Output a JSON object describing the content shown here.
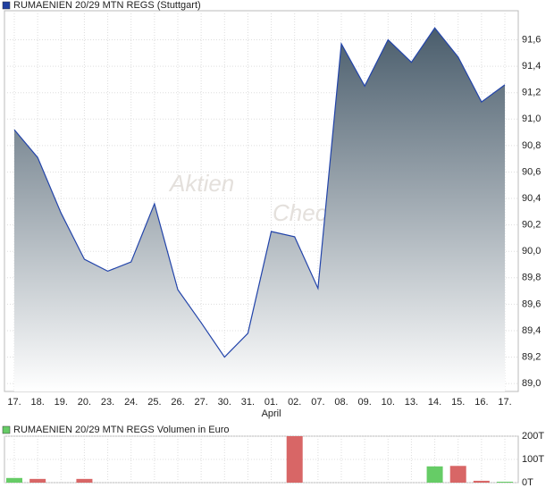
{
  "chart_data": [
    {
      "type": "area",
      "title": "RUMAENIEN 20/29 MTN REGS (Stuttgart)",
      "legend_color": "#1f3f9f",
      "categories": [
        "17.",
        "18.",
        "19.",
        "20.",
        "23.",
        "24.",
        "25.",
        "26.",
        "27.",
        "30.",
        "31.",
        "01.",
        "02.",
        "07.",
        "08.",
        "09.",
        "10.",
        "13.",
        "14.",
        "15.",
        "16.",
        "17."
      ],
      "month_labels": [
        null,
        null,
        null,
        null,
        null,
        null,
        null,
        null,
        null,
        null,
        null,
        "April",
        null,
        null,
        null,
        null,
        null,
        null,
        null,
        null,
        null,
        null
      ],
      "values": [
        90.92,
        90.71,
        90.29,
        89.94,
        89.85,
        89.92,
        90.36,
        89.71,
        89.46,
        89.2,
        89.38,
        90.15,
        90.11,
        89.72,
        91.57,
        91.25,
        91.6,
        91.43,
        91.69,
        91.47,
        91.13,
        91.26
      ],
      "color": "#2244aa",
      "fill_top": "#4a5d6c",
      "fill_bottom": "#ffffff",
      "ylim": [
        88.94,
        91.82
      ],
      "yticks": [
        {
          "value": 89.0,
          "label": "89,0"
        },
        {
          "value": 89.2,
          "label": "89,2"
        },
        {
          "value": 89.4,
          "label": "89,4"
        },
        {
          "value": 89.6,
          "label": "89,6"
        },
        {
          "value": 89.8,
          "label": "89,8"
        },
        {
          "value": 90.0,
          "label": "90,0"
        },
        {
          "value": 90.2,
          "label": "90,2"
        },
        {
          "value": 90.4,
          "label": "90,4"
        },
        {
          "value": 90.6,
          "label": "90,6"
        },
        {
          "value": 90.8,
          "label": "90,8"
        },
        {
          "value": 91.0,
          "label": "91,0"
        },
        {
          "value": 91.2,
          "label": "91,2"
        },
        {
          "value": 91.4,
          "label": "91,4"
        },
        {
          "value": 91.6,
          "label": "91,6"
        }
      ],
      "grid": true,
      "watermark": [
        "Aktien",
        "Check"
      ]
    },
    {
      "type": "bar",
      "title": "RUMAENIEN 20/29 MTN REGS Volumen in Euro",
      "legend_color": "#66cc66",
      "values": [
        20000,
        16000,
        null,
        16000,
        null,
        null,
        null,
        null,
        null,
        null,
        null,
        null,
        200000,
        null,
        null,
        null,
        null,
        null,
        70000,
        72000,
        8000,
        4000
      ],
      "colors": [
        "#66cc66",
        "#d86666",
        null,
        "#d86666",
        null,
        null,
        null,
        null,
        null,
        null,
        null,
        null,
        "#d86666",
        null,
        null,
        null,
        null,
        null,
        "#66cc66",
        "#d86666",
        "#d86666",
        "#66cc66"
      ],
      "ylim": [
        0,
        200000
      ],
      "yticks": [
        {
          "value": 0,
          "label": "0T"
        },
        {
          "value": 100000,
          "label": "100T"
        },
        {
          "value": 200000,
          "label": "200T"
        }
      ],
      "grid": true
    }
  ]
}
